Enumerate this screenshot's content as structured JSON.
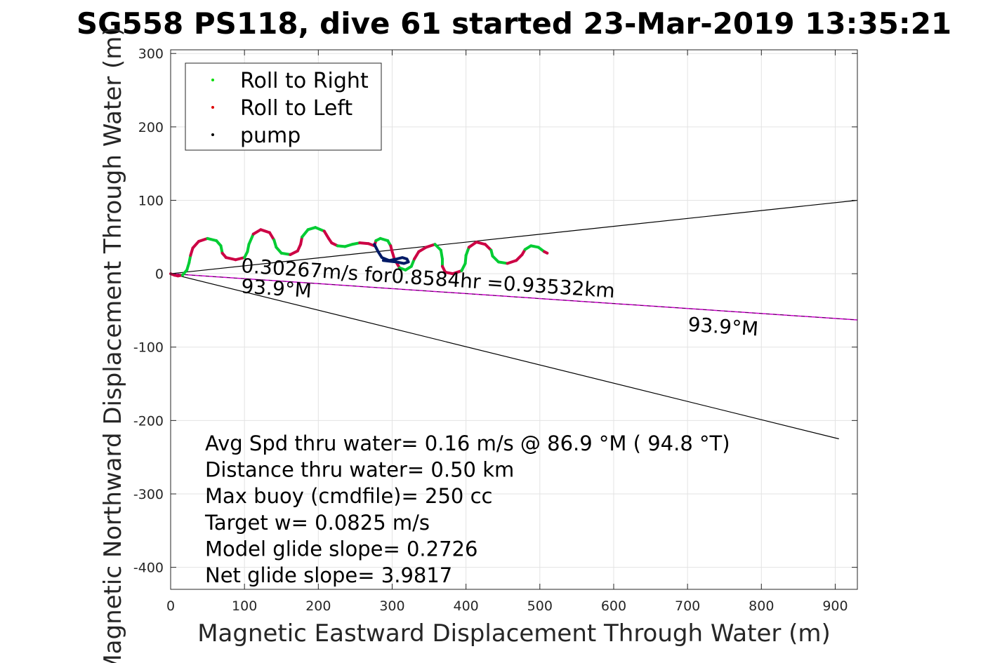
{
  "chart_data": {
    "type": "line",
    "title": "SG558 PS118, dive 61 started 23-Mar-2019 13:35:21",
    "xlabel": "Magnetic Eastward Displacement Through Water (m)",
    "ylabel": "Magnetic Northward Displacement Through Water (m)",
    "xlim": [
      0,
      930
    ],
    "ylim": [
      -430,
      305
    ],
    "xticks": [
      0,
      100,
      200,
      300,
      400,
      500,
      600,
      700,
      800,
      900
    ],
    "yticks": [
      300,
      200,
      100,
      0,
      -100,
      -200,
      -300,
      -400
    ],
    "xtick_labels": [
      "0",
      "100",
      "200",
      "300",
      "400",
      "500",
      "600",
      "700",
      "800",
      "900"
    ],
    "ytick_labels": [
      "300",
      "200",
      "100",
      "0",
      "-100",
      "-200",
      "-300",
      "-400"
    ],
    "grid": true,
    "legend_position": "top-left",
    "legend": [
      {
        "label": "Roll to Right",
        "color": "#00dd00"
      },
      {
        "label": "Roll to Left",
        "color": "#dd0000"
      },
      {
        "label": "pump",
        "color": "#000000"
      }
    ],
    "colors": {
      "roll_right": "#00cc33",
      "roll_left": "#cc0044",
      "pump": "#001a66",
      "heading_line": "#cc00cc",
      "bound_line": "#000000"
    },
    "track": [
      [
        0,
        0
      ],
      [
        5,
        -2
      ],
      [
        10,
        -3
      ],
      [
        16,
        -2
      ],
      [
        22,
        5
      ],
      [
        25,
        15
      ],
      [
        27,
        25
      ],
      [
        30,
        35
      ],
      [
        38,
        44
      ],
      [
        50,
        48
      ],
      [
        62,
        45
      ],
      [
        68,
        38
      ],
      [
        70,
        28
      ],
      [
        75,
        22
      ],
      [
        88,
        19
      ],
      [
        100,
        22
      ],
      [
        104,
        30
      ],
      [
        106,
        40
      ],
      [
        112,
        54
      ],
      [
        122,
        60
      ],
      [
        134,
        56
      ],
      [
        140,
        46
      ],
      [
        143,
        36
      ],
      [
        150,
        28
      ],
      [
        162,
        26
      ],
      [
        172,
        31
      ],
      [
        176,
        40
      ],
      [
        178,
        50
      ],
      [
        186,
        60
      ],
      [
        196,
        63
      ],
      [
        208,
        58
      ],
      [
        214,
        48
      ],
      [
        218,
        42
      ],
      [
        226,
        38
      ],
      [
        236,
        37
      ],
      [
        246,
        40
      ],
      [
        256,
        42
      ],
      [
        268,
        41
      ],
      [
        276,
        38
      ],
      [
        278,
        45
      ],
      [
        284,
        48
      ],
      [
        294,
        45
      ],
      [
        298,
        38
      ],
      [
        300,
        30
      ],
      [
        303,
        20
      ],
      [
        310,
        8
      ],
      [
        318,
        5
      ],
      [
        326,
        10
      ],
      [
        330,
        20
      ],
      [
        336,
        30
      ],
      [
        346,
        36
      ],
      [
        358,
        40
      ],
      [
        366,
        32
      ],
      [
        368,
        20
      ],
      [
        368,
        10
      ],
      [
        372,
        2
      ],
      [
        382,
        0
      ],
      [
        394,
        4
      ],
      [
        399,
        14
      ],
      [
        400,
        25
      ],
      [
        404,
        36
      ],
      [
        414,
        43
      ],
      [
        426,
        40
      ],
      [
        434,
        32
      ],
      [
        436,
        24
      ],
      [
        444,
        16
      ],
      [
        456,
        14
      ],
      [
        468,
        18
      ],
      [
        476,
        26
      ],
      [
        480,
        33
      ],
      [
        488,
        38
      ],
      [
        498,
        36
      ],
      [
        506,
        30
      ],
      [
        510,
        28
      ]
    ],
    "pump_track": [
      [
        276,
        40
      ],
      [
        281,
        30
      ],
      [
        286,
        22
      ],
      [
        296,
        18
      ],
      [
        306,
        20
      ],
      [
        314,
        22
      ],
      [
        320,
        20
      ],
      [
        322,
        16
      ],
      [
        316,
        14
      ],
      [
        306,
        16
      ],
      [
        296,
        17
      ],
      [
        288,
        18
      ]
    ],
    "heading_line": {
      "from": [
        0,
        0
      ],
      "to": [
        930,
        -63
      ]
    },
    "bound_lines": [
      {
        "from": [
          0,
          0
        ],
        "to": [
          930,
          100
        ]
      },
      {
        "from": [
          0,
          0
        ],
        "to": [
          905,
          -225
        ]
      }
    ],
    "annotations": [
      {
        "text": "0.30267m/s for0.8584hr =0.93532km",
        "x": 95,
        "y": 2,
        "angle": 3.9
      },
      {
        "text": "93.9°M",
        "x": 95,
        "y": -26,
        "angle": 3.9
      },
      {
        "text": "93.9°M",
        "x": 700,
        "y": -78,
        "angle": 3.9
      }
    ],
    "stats": [
      "Avg Spd thru water=  0.16 m/s @  86.9 °M ( 94.8 °T)",
      "Distance thru water=  0.50 km",
      "Max buoy (cmdfile)= 250 cc",
      "Target w= 0.0825 m/s",
      "Model glide slope= 0.2726",
      "Net glide slope= 3.9817"
    ]
  }
}
